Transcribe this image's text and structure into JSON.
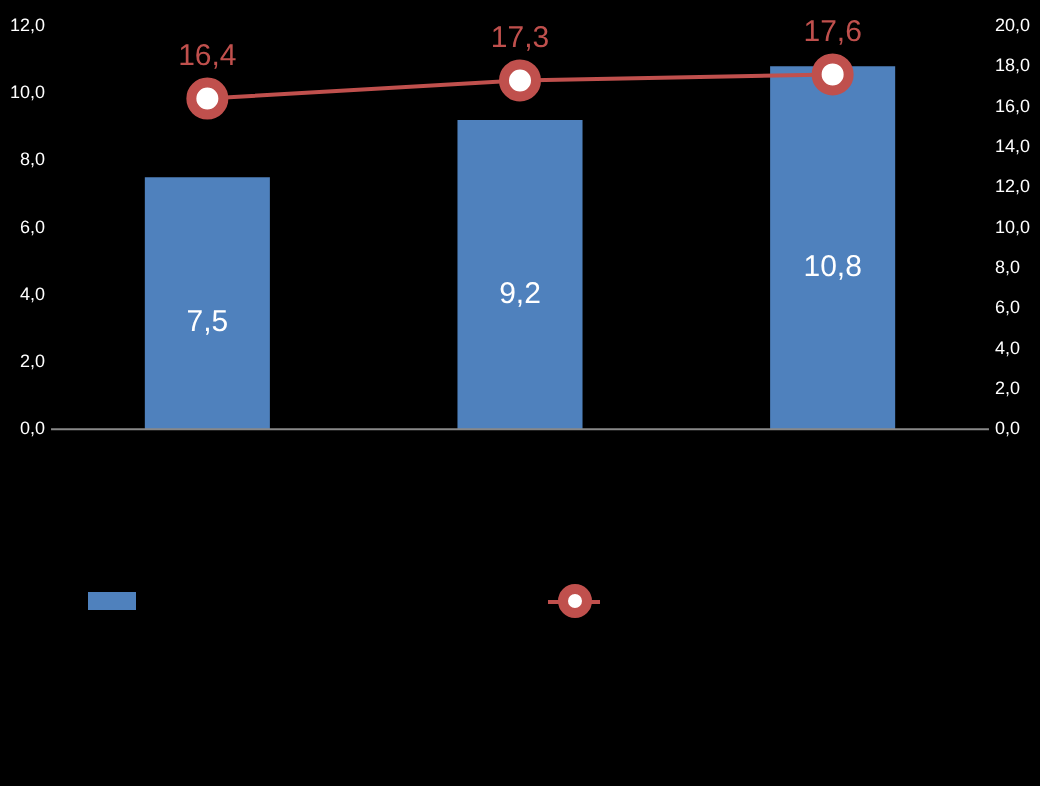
{
  "chart_data": {
    "type": "bar",
    "categories": [
      null,
      null,
      null
    ],
    "series": [
      {
        "color": "#4f81bd",
        "values": [
          7.5,
          9.2,
          10.8
        ],
        "value_labels": [
          "7,5",
          "9,2",
          "10,8"
        ]
      },
      {
        "type": "line",
        "axis": "y2",
        "color": "#c0504d",
        "values": [
          16.4,
          17.3,
          17.6
        ],
        "value_labels": [
          "16,4",
          "17,3",
          "17,6"
        ],
        "marker": "circle"
      }
    ],
    "ylim": [
      0,
      12
    ],
    "yticks": [
      {
        "value": 0,
        "label": "0,0"
      },
      {
        "value": 2,
        "label": "2,0"
      },
      {
        "value": 4,
        "label": "4,0"
      },
      {
        "value": 6,
        "label": "6,0"
      },
      {
        "value": 8,
        "label": "8,0"
      },
      {
        "value": 10,
        "label": "10,0"
      },
      {
        "value": 12,
        "label": "12,0"
      }
    ],
    "y2lim": [
      0,
      20
    ],
    "y2ticks": [
      {
        "value": 0,
        "label": "0,0"
      },
      {
        "value": 2,
        "label": "2,0"
      },
      {
        "value": 4,
        "label": "4,0"
      },
      {
        "value": 6,
        "label": "6,0"
      },
      {
        "value": 8,
        "label": "8,0"
      },
      {
        "value": 10,
        "label": "10,0"
      },
      {
        "value": 12,
        "label": "12,0"
      },
      {
        "value": 14,
        "label": "14,0"
      },
      {
        "value": 16,
        "label": "16,0"
      },
      {
        "value": 18,
        "label": "18,0"
      },
      {
        "value": 20,
        "label": "20,0"
      }
    ],
    "grid": false
  }
}
